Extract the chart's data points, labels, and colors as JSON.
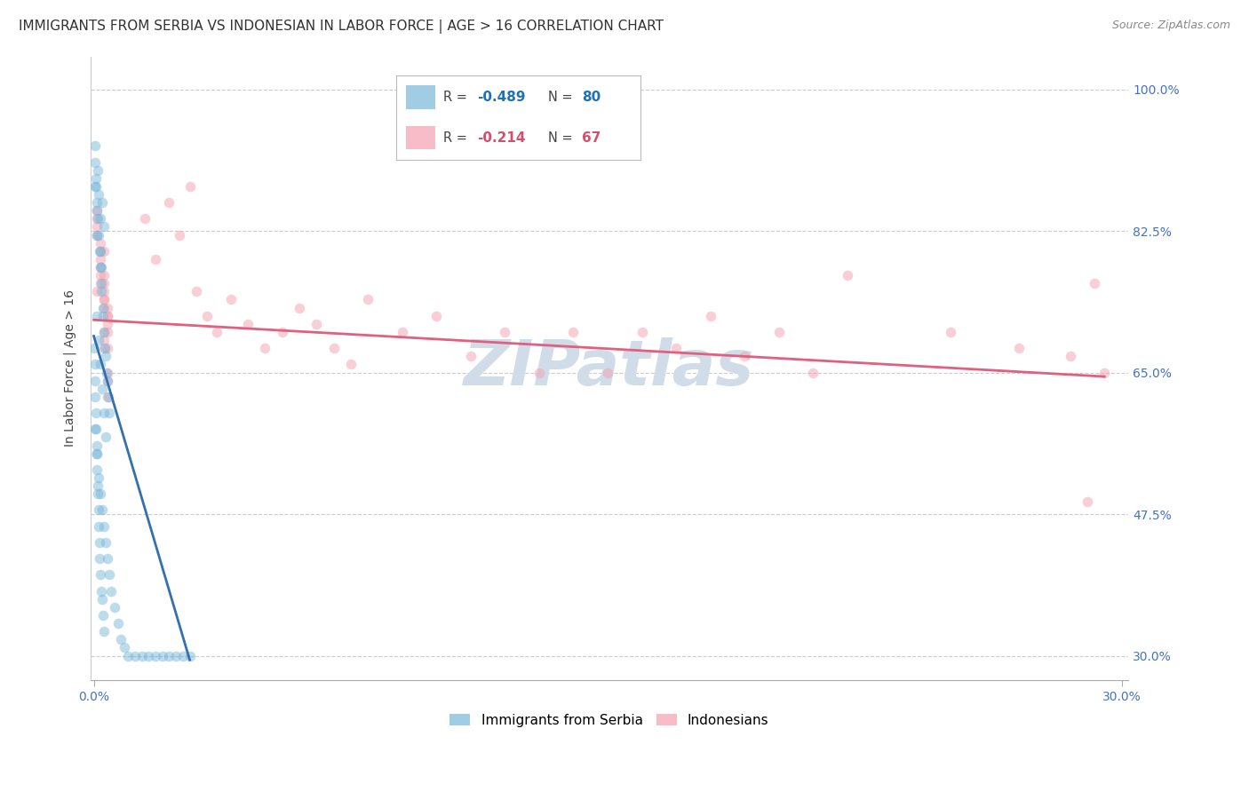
{
  "title": "IMMIGRANTS FROM SERBIA VS INDONESIAN IN LABOR FORCE | AGE > 16 CORRELATION CHART",
  "source": "Source: ZipAtlas.com",
  "ylabel": "In Labor Force | Age > 16",
  "watermark": "ZIPatlas",
  "serbia_label": "Immigrants from Serbia",
  "indonesia_label": "Indonesians",
  "serbia_R": -0.489,
  "serbia_N": 80,
  "indonesia_R": -0.214,
  "indonesia_N": 67,
  "xlim": [
    -0.001,
    0.302
  ],
  "ylim": [
    0.27,
    1.04
  ],
  "ytick_positions": [
    0.3,
    0.475,
    0.65,
    0.825,
    1.0
  ],
  "yticklabels": [
    "30.0%",
    "47.5%",
    "65.0%",
    "82.5%",
    "100.0%"
  ],
  "serbia_color": "#7ab8d9",
  "indonesia_color": "#f4a0b0",
  "serbia_line_color": "#3370b0",
  "indonesia_line_color": "#e06080",
  "grid_color": "#cccccc",
  "background_color": "#ffffff",
  "serbia_x": [
    0.0005,
    0.0008,
    0.001,
    0.0012,
    0.0015,
    0.0018,
    0.002,
    0.0022,
    0.0025,
    0.003,
    0.0003,
    0.0004,
    0.0006,
    0.0007,
    0.0009,
    0.0011,
    0.0013,
    0.0016,
    0.0019,
    0.0021,
    0.0023,
    0.0026,
    0.0028,
    0.003,
    0.0032,
    0.0035,
    0.0038,
    0.004,
    0.0042,
    0.0045,
    0.0002,
    0.0003,
    0.0004,
    0.0005,
    0.0006,
    0.0007,
    0.0008,
    0.0009,
    0.001,
    0.0011,
    0.0012,
    0.0013,
    0.0014,
    0.0016,
    0.0017,
    0.002,
    0.0022,
    0.0024,
    0.0027,
    0.003,
    0.0005,
    0.001,
    0.0015,
    0.002,
    0.0025,
    0.003,
    0.0035,
    0.004,
    0.0045,
    0.005,
    0.006,
    0.007,
    0.008,
    0.009,
    0.01,
    0.012,
    0.014,
    0.016,
    0.018,
    0.02,
    0.022,
    0.024,
    0.026,
    0.028,
    0.001,
    0.0015,
    0.002,
    0.0025,
    0.003,
    0.0035
  ],
  "serbia_y": [
    0.88,
    0.85,
    0.82,
    0.9,
    0.87,
    0.84,
    0.8,
    0.78,
    0.86,
    0.83,
    0.93,
    0.91,
    0.89,
    0.88,
    0.86,
    0.84,
    0.82,
    0.8,
    0.78,
    0.76,
    0.75,
    0.73,
    0.72,
    0.7,
    0.68,
    0.67,
    0.65,
    0.64,
    0.62,
    0.6,
    0.68,
    0.66,
    0.64,
    0.62,
    0.6,
    0.58,
    0.56,
    0.55,
    0.53,
    0.51,
    0.5,
    0.48,
    0.46,
    0.44,
    0.42,
    0.4,
    0.38,
    0.37,
    0.35,
    0.33,
    0.58,
    0.55,
    0.52,
    0.5,
    0.48,
    0.46,
    0.44,
    0.42,
    0.4,
    0.38,
    0.36,
    0.34,
    0.32,
    0.31,
    0.3,
    0.3,
    0.3,
    0.3,
    0.3,
    0.3,
    0.3,
    0.3,
    0.3,
    0.3,
    0.72,
    0.69,
    0.66,
    0.63,
    0.6,
    0.57
  ],
  "indonesia_x": [
    0.001,
    0.002,
    0.003,
    0.004,
    0.002,
    0.003,
    0.004,
    0.003,
    0.001,
    0.004,
    0.003,
    0.002,
    0.001,
    0.004,
    0.003,
    0.002,
    0.001,
    0.003,
    0.004,
    0.003,
    0.004,
    0.004,
    0.002,
    0.003,
    0.003,
    0.002,
    0.004,
    0.004,
    0.001,
    0.003,
    0.015,
    0.018,
    0.022,
    0.025,
    0.028,
    0.03,
    0.033,
    0.036,
    0.04,
    0.045,
    0.05,
    0.055,
    0.06,
    0.065,
    0.07,
    0.075,
    0.08,
    0.09,
    0.1,
    0.11,
    0.12,
    0.13,
    0.14,
    0.15,
    0.16,
    0.17,
    0.18,
    0.19,
    0.2,
    0.21,
    0.22,
    0.25,
    0.27,
    0.285,
    0.29,
    0.292,
    0.295
  ],
  "indonesia_y": [
    0.75,
    0.78,
    0.8,
    0.72,
    0.76,
    0.74,
    0.7,
    0.77,
    0.82,
    0.68,
    0.73,
    0.79,
    0.84,
    0.71,
    0.76,
    0.81,
    0.85,
    0.69,
    0.65,
    0.74,
    0.64,
    0.72,
    0.8,
    0.75,
    0.68,
    0.77,
    0.73,
    0.62,
    0.83,
    0.7,
    0.84,
    0.79,
    0.86,
    0.82,
    0.88,
    0.75,
    0.72,
    0.7,
    0.74,
    0.71,
    0.68,
    0.7,
    0.73,
    0.71,
    0.68,
    0.66,
    0.74,
    0.7,
    0.72,
    0.67,
    0.7,
    0.65,
    0.7,
    0.65,
    0.7,
    0.68,
    0.72,
    0.67,
    0.7,
    0.65,
    0.77,
    0.7,
    0.68,
    0.67,
    0.49,
    0.76,
    0.65
  ],
  "serbia_line_x": [
    0.0,
    0.028
  ],
  "serbia_line_y": [
    0.695,
    0.295
  ],
  "indonesia_line_x": [
    0.0,
    0.295
  ],
  "indonesia_line_y": [
    0.715,
    0.645
  ],
  "title_fontsize": 11,
  "axis_label_fontsize": 10,
  "tick_fontsize": 10,
  "watermark_fontsize": 52,
  "watermark_color": "#d0dde8",
  "right_tick_color": "#4472c4",
  "marker_size": 70,
  "marker_alpha": 0.5,
  "legend_R_color_serbia": "#2171b5",
  "legend_R_color_indonesia": "#d05070",
  "legend_box_color": "#dddddd"
}
